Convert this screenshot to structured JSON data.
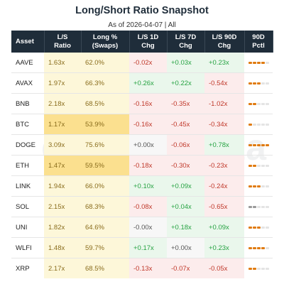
{
  "title": "Long/Short Ratio Snapshot",
  "subtitle": "As of 2026-04-07 | All",
  "watermark": "amberdata",
  "colors": {
    "header_bg": "#1f2d3a",
    "ratio_bg": "#fdf7d9",
    "highlight_bg": "#fbe08f",
    "negative": "#c0392b",
    "positive": "#27a343",
    "percentile_fill": "#e07b10"
  },
  "chart_data": {
    "type": "table",
    "columns": [
      "Asset",
      "L/S Ratio",
      "Long % (Swaps)",
      "L/S 1D Chg",
      "L/S 7D Chg",
      "L/S 90D Chg",
      "90D Pctl"
    ],
    "rows": [
      {
        "asset": "AAVE",
        "ratio": "1.63x",
        "long": "62.0%",
        "chg1d": "-0.02x",
        "chg7d": "+0.03x",
        "chg90d": "+0.23x",
        "pctl": 4,
        "highlight": false
      },
      {
        "asset": "AVAX",
        "ratio": "1.97x",
        "long": "66.3%",
        "chg1d": "+0.26x",
        "chg7d": "+0.22x",
        "chg90d": "-0.54x",
        "pctl": 3,
        "highlight": false
      },
      {
        "asset": "BNB",
        "ratio": "2.18x",
        "long": "68.5%",
        "chg1d": "-0.16x",
        "chg7d": "-0.35x",
        "chg90d": "-1.02x",
        "pctl": 2,
        "highlight": false
      },
      {
        "asset": "BTC",
        "ratio": "1.17x",
        "long": "53.9%",
        "chg1d": "-0.16x",
        "chg7d": "-0.45x",
        "chg90d": "-0.34x",
        "pctl": 1,
        "highlight": true
      },
      {
        "asset": "DOGE",
        "ratio": "3.09x",
        "long": "75.6%",
        "chg1d": "+0.00x",
        "chg7d": "-0.06x",
        "chg90d": "+0.78x",
        "pctl": 5,
        "highlight": false
      },
      {
        "asset": "ETH",
        "ratio": "1.47x",
        "long": "59.5%",
        "chg1d": "-0.18x",
        "chg7d": "-0.30x",
        "chg90d": "-0.23x",
        "pctl": 2,
        "highlight": true
      },
      {
        "asset": "LINK",
        "ratio": "1.94x",
        "long": "66.0%",
        "chg1d": "+0.10x",
        "chg7d": "+0.09x",
        "chg90d": "-0.24x",
        "pctl": 3,
        "highlight": false
      },
      {
        "asset": "SOL",
        "ratio": "2.15x",
        "long": "68.3%",
        "chg1d": "-0.08x",
        "chg7d": "+0.04x",
        "chg90d": "-0.65x",
        "pctl": 2,
        "highlight": false,
        "grey": true
      },
      {
        "asset": "UNI",
        "ratio": "1.82x",
        "long": "64.6%",
        "chg1d": "-0.00x",
        "chg7d": "+0.18x",
        "chg90d": "+0.09x",
        "pctl": 3,
        "highlight": false
      },
      {
        "asset": "WLFI",
        "ratio": "1.48x",
        "long": "59.7%",
        "chg1d": "+0.17x",
        "chg7d": "+0.00x",
        "chg90d": "+0.23x",
        "pctl": 4,
        "highlight": false
      },
      {
        "asset": "XRP",
        "ratio": "2.17x",
        "long": "68.5%",
        "chg1d": "-0.13x",
        "chg7d": "-0.07x",
        "chg90d": "-0.05x",
        "pctl": 2,
        "highlight": false
      }
    ]
  }
}
